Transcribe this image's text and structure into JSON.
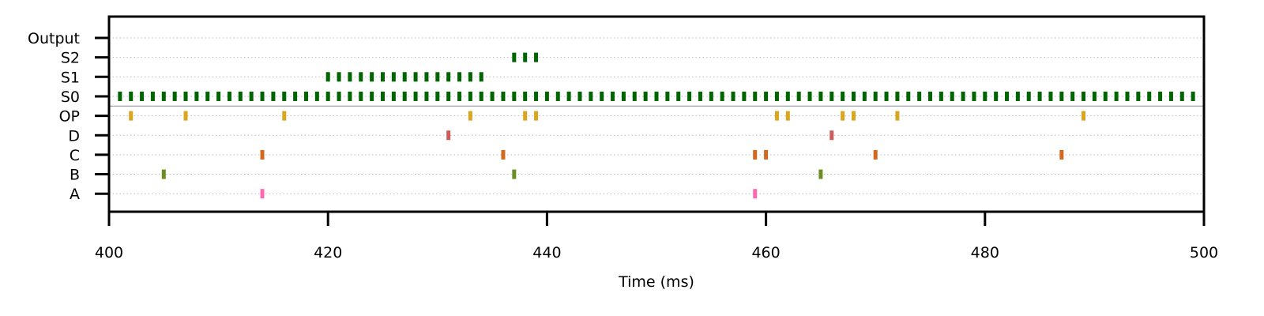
{
  "chart_data": {
    "type": "scatter",
    "subtype": "raster",
    "title": "",
    "xlabel": "Time (ms)",
    "ylabel": "",
    "xlim": [
      400,
      500
    ],
    "x_ticks": [
      400,
      420,
      440,
      460,
      480,
      500
    ],
    "x_tick_labels": [
      "400",
      "420",
      "440",
      "460",
      "480",
      "500"
    ],
    "grid": {
      "horizontal": "dotted",
      "vertical": false
    },
    "separator_between": [
      "OP",
      "S0"
    ],
    "rows": [
      "Output",
      "S2",
      "S1",
      "S0",
      "OP",
      "D",
      "C",
      "B",
      "A"
    ],
    "series": [
      {
        "name": "Output",
        "color": "#006400",
        "x": []
      },
      {
        "name": "S2",
        "color": "#006400",
        "x": [
          437,
          438,
          439
        ]
      },
      {
        "name": "S1",
        "color": "#006400",
        "x": [
          420,
          421,
          422,
          423,
          424,
          425,
          426,
          427,
          428,
          429,
          430,
          431,
          432,
          433,
          434
        ]
      },
      {
        "name": "S0",
        "color": "#006400",
        "x": [
          401,
          402,
          403,
          404,
          405,
          406,
          407,
          408,
          409,
          410,
          411,
          412,
          413,
          414,
          415,
          416,
          417,
          418,
          419,
          420,
          421,
          422,
          423,
          424,
          425,
          426,
          427,
          428,
          429,
          430,
          431,
          432,
          433,
          434,
          435,
          436,
          437,
          438,
          439,
          440,
          441,
          442,
          443,
          444,
          445,
          446,
          447,
          448,
          449,
          450,
          451,
          452,
          453,
          454,
          455,
          456,
          457,
          458,
          459,
          460,
          461,
          462,
          463,
          464,
          465,
          466,
          467,
          468,
          469,
          470,
          471,
          472,
          473,
          474,
          475,
          476,
          477,
          478,
          479,
          480,
          481,
          482,
          483,
          484,
          485,
          486,
          487,
          488,
          489,
          490,
          491,
          492,
          493,
          494,
          495,
          496,
          497,
          498,
          499
        ]
      },
      {
        "name": "OP",
        "color": "#DAA520",
        "x": [
          402,
          407,
          416,
          433,
          438,
          439,
          461,
          462,
          467,
          468,
          472,
          489
        ]
      },
      {
        "name": "D",
        "color": "#CD5C5C",
        "x": [
          431,
          466
        ]
      },
      {
        "name": "C",
        "color": "#D2691E",
        "x": [
          414,
          436,
          459,
          460,
          470,
          487
        ]
      },
      {
        "name": "B",
        "color": "#6B8E23",
        "x": [
          405,
          437,
          465
        ]
      },
      {
        "name": "A",
        "color": "#FF69B4",
        "x": [
          414,
          459
        ]
      }
    ]
  }
}
